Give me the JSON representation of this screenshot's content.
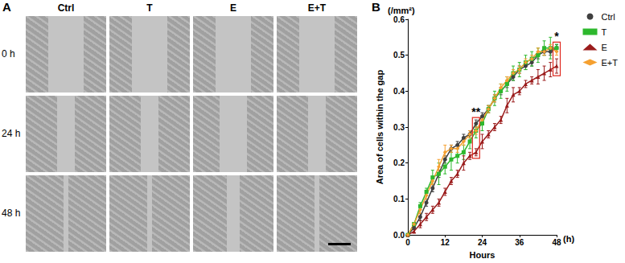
{
  "panel_a": {
    "label": "A",
    "columns": [
      "Ctrl",
      "T",
      "E",
      "E+T"
    ],
    "rows": [
      "0 h",
      "24 h",
      "48 h"
    ]
  },
  "panel_b": {
    "label": "B"
  },
  "chart_data": {
    "type": "line",
    "unit": "(/mm²)",
    "x_label": "Hours",
    "x_unit": "(h)",
    "y_label": "Area of cells within the gap",
    "x": [
      0,
      2,
      4,
      6,
      8,
      10,
      12,
      14,
      16,
      18,
      20,
      22,
      24,
      26,
      28,
      30,
      32,
      34,
      36,
      38,
      40,
      42,
      44,
      46,
      48
    ],
    "series": [
      {
        "name": "Ctrl",
        "color": "#404040",
        "marker": "circle",
        "values": [
          0,
          0.02,
          0.05,
          0.09,
          0.13,
          0.17,
          0.21,
          0.24,
          0.25,
          0.27,
          0.28,
          0.31,
          0.33,
          0.35,
          0.38,
          0.4,
          0.42,
          0.44,
          0.46,
          0.47,
          0.48,
          0.5,
          0.51,
          0.51,
          0.52
        ],
        "errors": [
          0,
          0.005,
          0.01,
          0.01,
          0.01,
          0.01,
          0.01,
          0.01,
          0.01,
          0.01,
          0.01,
          0.01,
          0.01,
          0.01,
          0.01,
          0.01,
          0.01,
          0.01,
          0.01,
          0.01,
          0.01,
          0.01,
          0.01,
          0.01,
          0.01
        ]
      },
      {
        "name": "T",
        "color": "#2db82d",
        "marker": "square",
        "values": [
          0,
          0.03,
          0.08,
          0.12,
          0.16,
          0.17,
          0.19,
          0.21,
          0.22,
          0.23,
          0.26,
          0.29,
          0.31,
          0.35,
          0.38,
          0.4,
          0.42,
          0.45,
          0.46,
          0.48,
          0.49,
          0.5,
          0.52,
          0.52,
          0.52
        ],
        "errors": [
          0,
          0.005,
          0.01,
          0.01,
          0.02,
          0.03,
          0.02,
          0.03,
          0.02,
          0.02,
          0.02,
          0.02,
          0.02,
          0.01,
          0.02,
          0.02,
          0.02,
          0.02,
          0.02,
          0.02,
          0.02,
          0.02,
          0.02,
          0.03,
          0.01
        ]
      },
      {
        "name": "E",
        "color": "#9b1c1c",
        "marker": "triangle",
        "values": [
          0,
          0.01,
          0.03,
          0.05,
          0.07,
          0.09,
          0.12,
          0.15,
          0.17,
          0.2,
          0.22,
          0.23,
          0.26,
          0.28,
          0.3,
          0.32,
          0.36,
          0.39,
          0.4,
          0.42,
          0.43,
          0.44,
          0.45,
          0.46,
          0.47
        ],
        "errors": [
          0,
          0.005,
          0.01,
          0.01,
          0.01,
          0.01,
          0.01,
          0.01,
          0.01,
          0.02,
          0.01,
          0.01,
          0.02,
          0.01,
          0.01,
          0.01,
          0.02,
          0.02,
          0.01,
          0.01,
          0.01,
          0.02,
          0.02,
          0.02,
          0.02
        ]
      },
      {
        "name": "E+T",
        "color": "#f5a030",
        "marker": "diamond",
        "values": [
          0,
          0.03,
          0.07,
          0.11,
          0.15,
          0.19,
          0.23,
          0.24,
          0.24,
          0.26,
          0.28,
          0.29,
          0.32,
          0.35,
          0.38,
          0.41,
          0.43,
          0.45,
          0.46,
          0.48,
          0.49,
          0.51,
          0.51,
          0.52,
          0.51
        ],
        "errors": [
          0,
          0.005,
          0.01,
          0.01,
          0.01,
          0.02,
          0.02,
          0.01,
          0.01,
          0.01,
          0.01,
          0.01,
          0.01,
          0.01,
          0.01,
          0.01,
          0.01,
          0.01,
          0.01,
          0.01,
          0.01,
          0.01,
          0.01,
          0.01,
          0.01
        ]
      }
    ],
    "annotations": [
      {
        "text": "**",
        "x": 22
      },
      {
        "text": "*",
        "x": 48
      }
    ],
    "xlim": [
      0,
      48
    ],
    "xticks": [
      0,
      12,
      24,
      36,
      48
    ],
    "ylim": [
      0,
      0.6
    ],
    "yticks": [
      {
        "value": 0,
        "label": "0.0"
      },
      {
        "value": 0.1,
        "label": "0.1"
      },
      {
        "value": 0.2,
        "label": "0.2"
      },
      {
        "value": 0.3,
        "label": "0.3"
      },
      {
        "value": 0.4,
        "label": "0.4"
      },
      {
        "value": 0.5,
        "label": "0.5"
      },
      {
        "value": 0.6,
        "label": "0.6"
      }
    ],
    "grid": false,
    "legend": "right"
  }
}
